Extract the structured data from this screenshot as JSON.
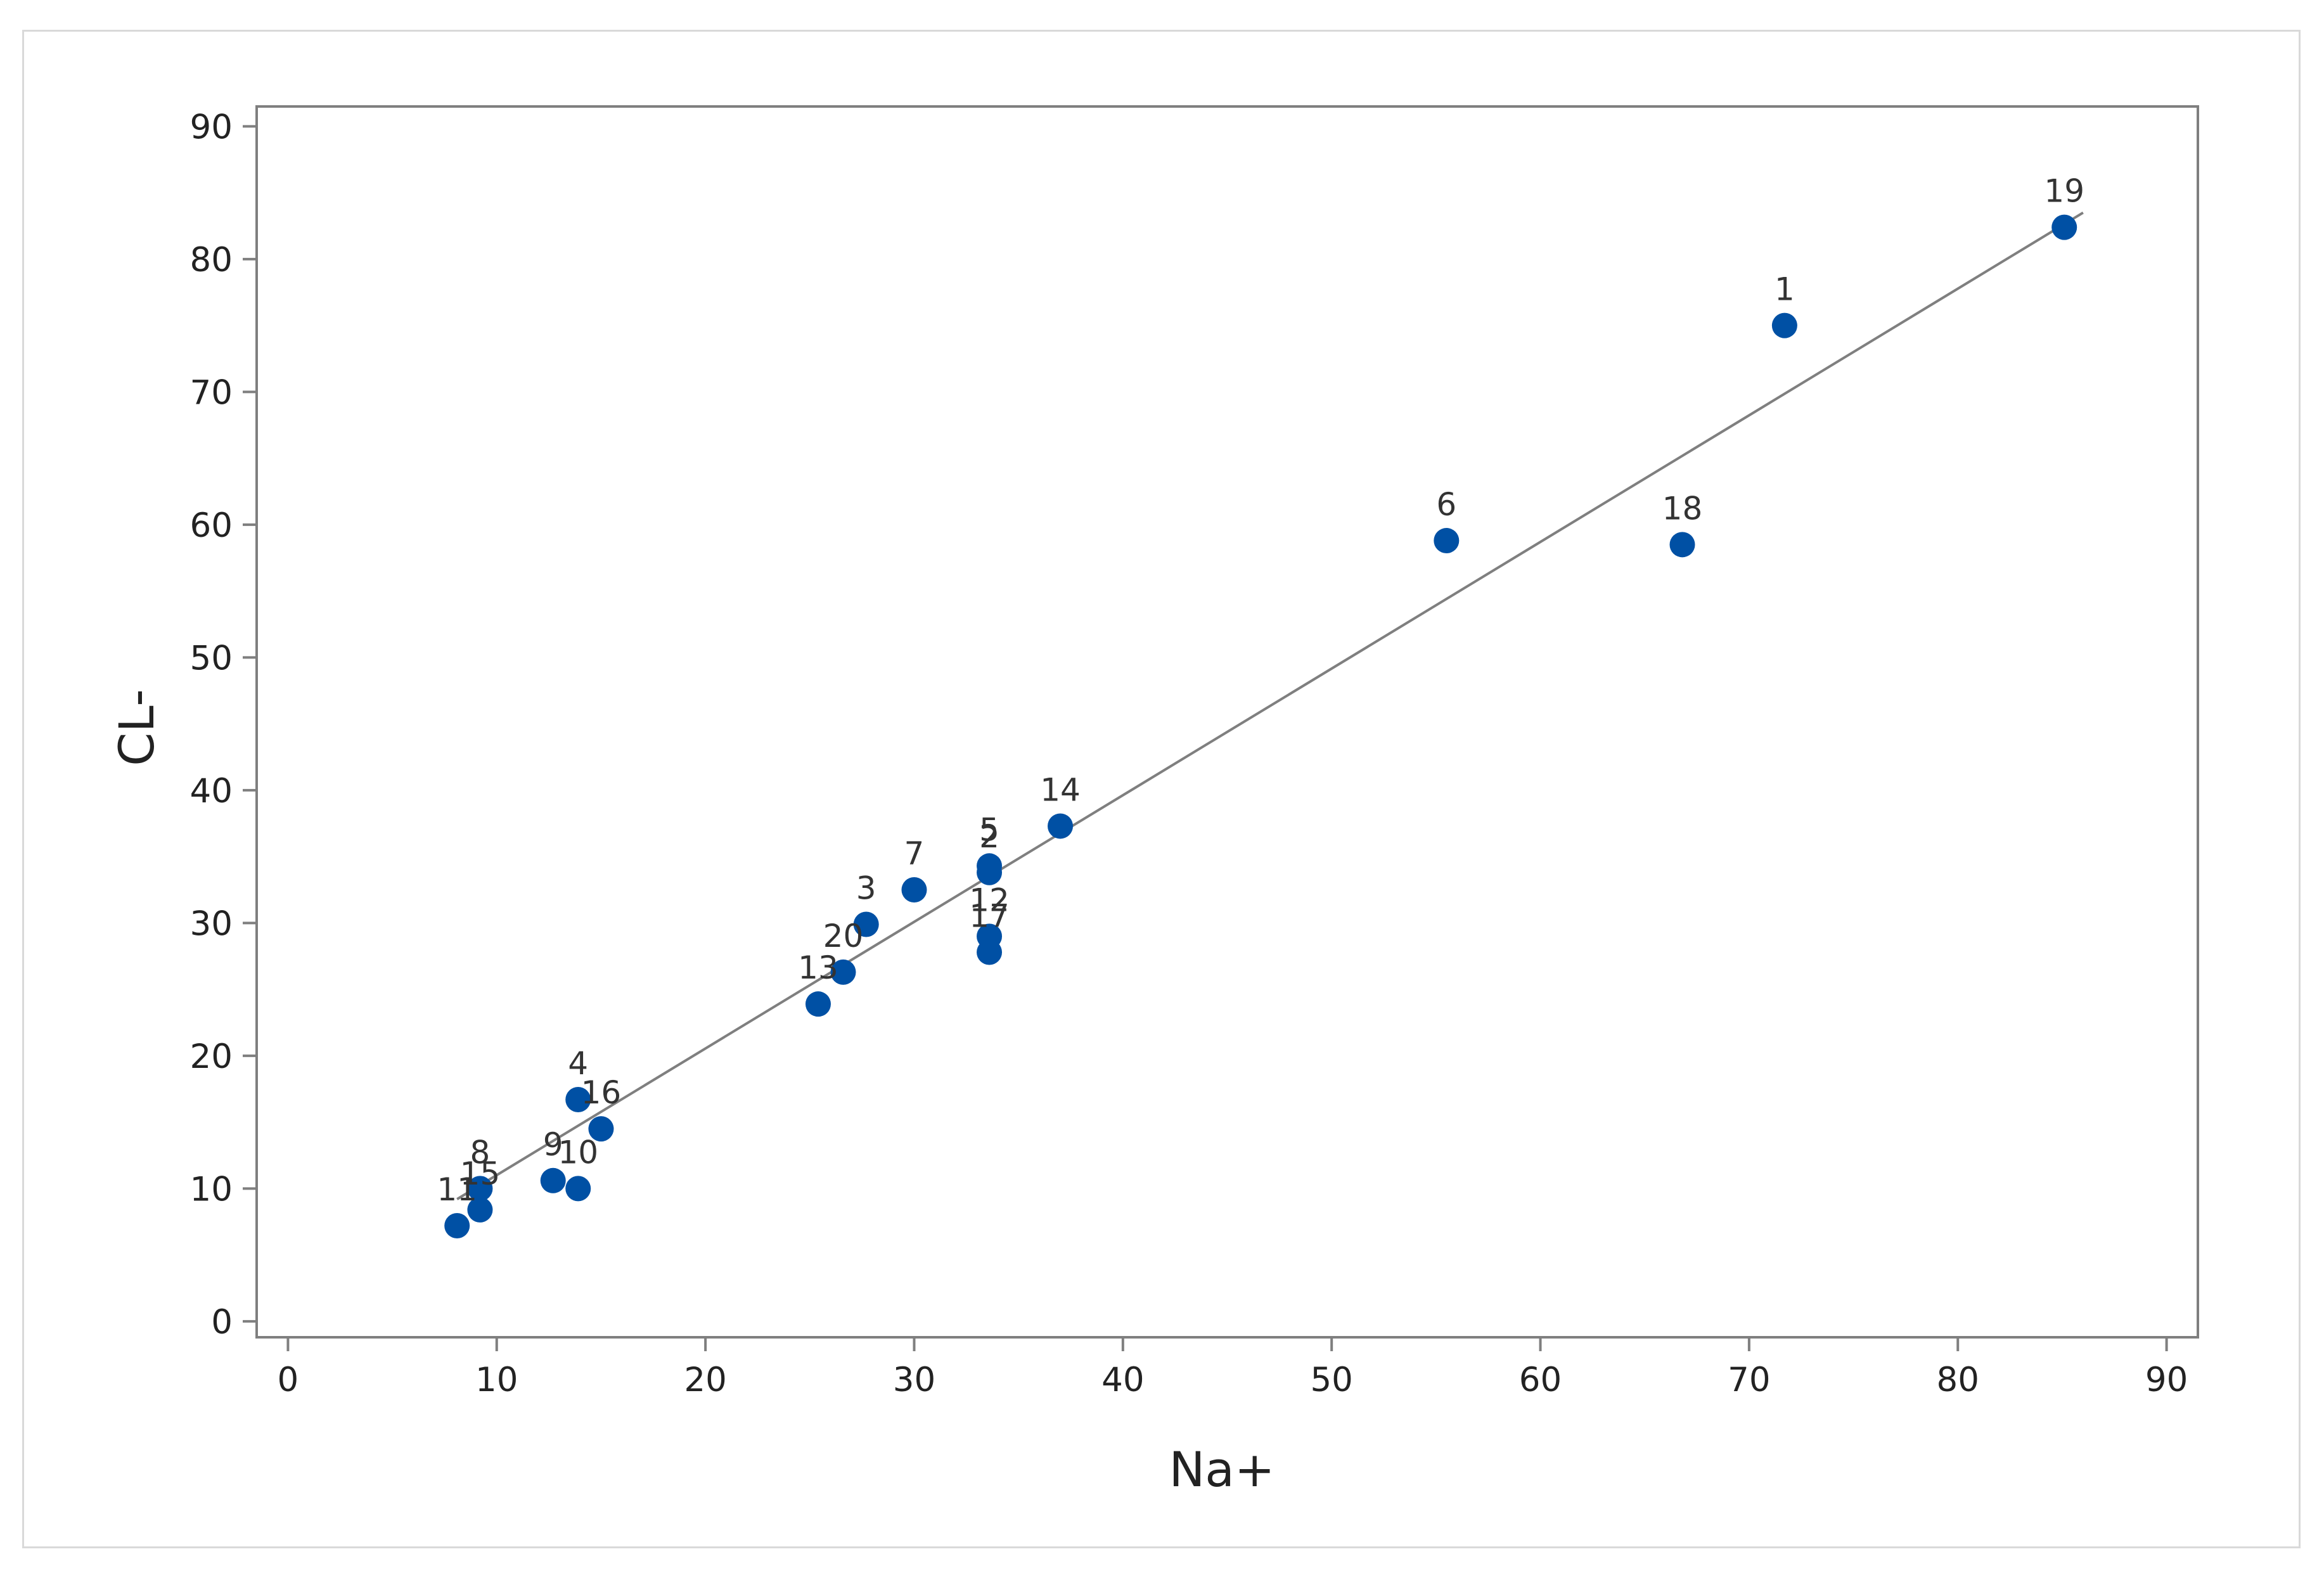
{
  "chart_data": {
    "type": "scatter",
    "title": "",
    "xlabel": "Na+",
    "ylabel": "CL-",
    "xlim": [
      -1.5,
      91.5
    ],
    "ylim": [
      -1.2,
      91.5
    ],
    "xticks": [
      0,
      10,
      20,
      30,
      40,
      50,
      60,
      70,
      80,
      90
    ],
    "yticks": [
      0,
      10,
      20,
      30,
      40,
      50,
      60,
      70,
      80,
      90
    ],
    "grid": false,
    "legend": "none",
    "marker_color": "#0050a4",
    "line_color": "#7f7f7f",
    "points": [
      {
        "label": "1",
        "x": 71.7,
        "y": 75.0
      },
      {
        "label": "2",
        "x": 33.6,
        "y": 33.8
      },
      {
        "label": "3",
        "x": 27.7,
        "y": 29.9
      },
      {
        "label": "4",
        "x": 13.9,
        "y": 16.7
      },
      {
        "label": "5",
        "x": 33.6,
        "y": 34.3
      },
      {
        "label": "6",
        "x": 55.5,
        "y": 58.8
      },
      {
        "label": "7",
        "x": 30.0,
        "y": 32.5
      },
      {
        "label": "8",
        "x": 9.2,
        "y": 10.0
      },
      {
        "label": "9",
        "x": 12.7,
        "y": 10.6
      },
      {
        "label": "10",
        "x": 13.9,
        "y": 10.0
      },
      {
        "label": "11",
        "x": 8.1,
        "y": 7.2
      },
      {
        "label": "12",
        "x": 33.6,
        "y": 29.0
      },
      {
        "label": "13",
        "x": 25.4,
        "y": 23.9
      },
      {
        "label": "14",
        "x": 37.0,
        "y": 37.3
      },
      {
        "label": "15",
        "x": 9.2,
        "y": 8.4
      },
      {
        "label": "16",
        "x": 15.0,
        "y": 14.5
      },
      {
        "label": "17",
        "x": 33.6,
        "y": 27.8
      },
      {
        "label": "18",
        "x": 66.8,
        "y": 58.5
      },
      {
        "label": "19",
        "x": 85.1,
        "y": 82.4
      },
      {
        "label": "20",
        "x": 26.6,
        "y": 26.3
      }
    ],
    "fit_line": {
      "x": [
        8.1,
        86.0
      ],
      "y": [
        9.2,
        83.5
      ]
    }
  }
}
